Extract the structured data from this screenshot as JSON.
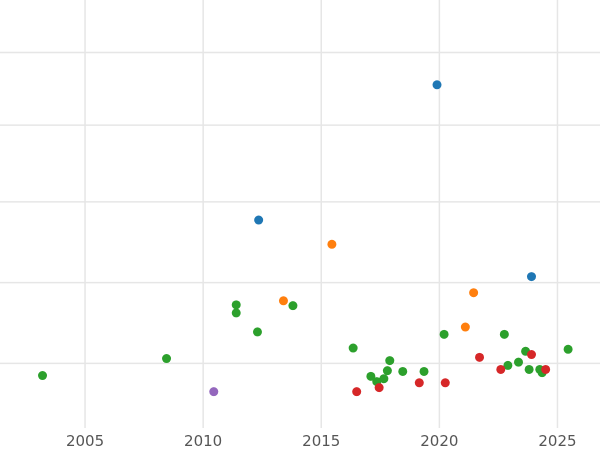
{
  "chart_data": {
    "type": "scatter",
    "title": "",
    "xlabel": "",
    "ylabel": "",
    "xlim": [
      2001.4,
      2026.8
    ],
    "ylim": [
      -0.06,
      1.0
    ],
    "x_ticks": [
      "2005",
      "2010",
      "2015",
      "2020",
      "2025"
    ],
    "y_gridlines": [
      0.1,
      0.3,
      0.5,
      0.69,
      0.87
    ],
    "grid": true,
    "legend": "none",
    "series": [
      {
        "color": "#1f77b4",
        "points": [
          {
            "x": 2019.9,
            "y": 0.79
          },
          {
            "x": 2012.35,
            "y": 0.455
          },
          {
            "x": 2023.9,
            "y": 0.315
          }
        ]
      },
      {
        "color": "#ff7f0e",
        "points": [
          {
            "x": 2015.45,
            "y": 0.395
          },
          {
            "x": 2013.4,
            "y": 0.255
          },
          {
            "x": 2021.45,
            "y": 0.275
          },
          {
            "x": 2021.1,
            "y": 0.19
          }
        ]
      },
      {
        "color": "#2ca02c",
        "points": [
          {
            "x": 2003.2,
            "y": 0.07
          },
          {
            "x": 2008.45,
            "y": 0.112
          },
          {
            "x": 2011.4,
            "y": 0.245
          },
          {
            "x": 2011.4,
            "y": 0.225
          },
          {
            "x": 2013.8,
            "y": 0.243
          },
          {
            "x": 2012.3,
            "y": 0.178
          },
          {
            "x": 2016.35,
            "y": 0.138
          },
          {
            "x": 2017.1,
            "y": 0.068
          },
          {
            "x": 2017.35,
            "y": 0.055
          },
          {
            "x": 2017.65,
            "y": 0.062
          },
          {
            "x": 2017.8,
            "y": 0.082
          },
          {
            "x": 2017.9,
            "y": 0.107
          },
          {
            "x": 2018.45,
            "y": 0.08
          },
          {
            "x": 2019.35,
            "y": 0.08
          },
          {
            "x": 2020.2,
            "y": 0.172
          },
          {
            "x": 2022.75,
            "y": 0.172
          },
          {
            "x": 2022.9,
            "y": 0.095
          },
          {
            "x": 2023.35,
            "y": 0.103
          },
          {
            "x": 2023.65,
            "y": 0.13
          },
          {
            "x": 2023.8,
            "y": 0.085
          },
          {
            "x": 2024.25,
            "y": 0.085
          },
          {
            "x": 2024.35,
            "y": 0.077
          },
          {
            "x": 2025.45,
            "y": 0.135
          }
        ]
      },
      {
        "color": "#d62728",
        "points": [
          {
            "x": 2016.5,
            "y": 0.03
          },
          {
            "x": 2017.45,
            "y": 0.04
          },
          {
            "x": 2019.15,
            "y": 0.052
          },
          {
            "x": 2020.25,
            "y": 0.052
          },
          {
            "x": 2021.7,
            "y": 0.115
          },
          {
            "x": 2022.6,
            "y": 0.085
          },
          {
            "x": 2023.9,
            "y": 0.122
          },
          {
            "x": 2024.5,
            "y": 0.085
          }
        ]
      },
      {
        "color": "#9467bd",
        "points": [
          {
            "x": 2010.45,
            "y": 0.03
          }
        ]
      }
    ]
  }
}
